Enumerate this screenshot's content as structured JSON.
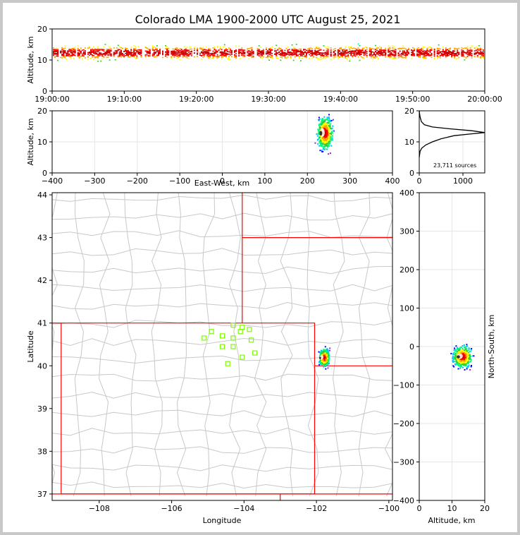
{
  "title": "Colorado LMA 1900-2000 UTC August 25, 2021",
  "colors": {
    "border": "#ff0000",
    "counties": "#c8c8c8",
    "stations": "#7cfc00",
    "hist": "#000000"
  },
  "chart_data": [
    {
      "type": "scatter",
      "id": "altitude-time",
      "ylabel": "Altitude, km",
      "ylim": [
        0,
        20
      ],
      "yticks": [
        "0",
        "10",
        "20"
      ],
      "xticks": [
        "19:00:00",
        "19:10:00",
        "19:20:00",
        "19:30:00",
        "19:40:00",
        "19:50:00",
        "20:00:00"
      ],
      "xlim_minutes": [
        0,
        60
      ]
    },
    {
      "type": "scatter",
      "id": "altitude-eastwest",
      "xlabel": "East-West, km",
      "ylabel": "Altitude, km",
      "xlim": [
        -400,
        400
      ],
      "ylim": [
        0,
        20
      ],
      "xticks": [
        "−400",
        "−300",
        "−200",
        "−100",
        "0",
        "100",
        "200",
        "300",
        "400"
      ],
      "yticks": [
        "0",
        "10",
        "20"
      ],
      "cluster": {
        "x": 240,
        "y": 13
      }
    },
    {
      "type": "line",
      "id": "altitude-histogram",
      "annotation": "23,711 sources",
      "xlim": [
        0,
        1500
      ],
      "ylim": [
        0,
        20
      ],
      "xticks": [
        "0",
        "1000"
      ],
      "yticks": [
        "0",
        "10",
        "20"
      ],
      "profile": [
        [
          0,
          5
        ],
        [
          20,
          7
        ],
        [
          60,
          8
        ],
        [
          150,
          9
        ],
        [
          300,
          10
        ],
        [
          500,
          11
        ],
        [
          800,
          12
        ],
        [
          1200,
          12.6
        ],
        [
          1500,
          13
        ],
        [
          1200,
          13.6
        ],
        [
          700,
          14.2
        ],
        [
          300,
          14.8
        ],
        [
          120,
          15.5
        ],
        [
          50,
          16.5
        ],
        [
          20,
          18
        ],
        [
          8,
          19
        ],
        [
          0,
          20
        ]
      ]
    },
    {
      "type": "scatter",
      "id": "plan-view",
      "xlabel": "Longitude",
      "ylabel": "Latitude",
      "xlim": [
        -109.3,
        -99.9
      ],
      "ylim": [
        36.85,
        44.05
      ],
      "xticks": [
        "−108",
        "−106",
        "−104",
        "−102",
        "−100"
      ],
      "yticks": [
        "37",
        "38",
        "39",
        "40",
        "41",
        "42",
        "43",
        "44"
      ],
      "cluster": {
        "lon": -101.8,
        "lat": 40.2
      },
      "stations": [
        [
          -104.9,
          40.8
        ],
        [
          -104.6,
          40.7
        ],
        [
          -104.3,
          40.95
        ],
        [
          -104.05,
          40.9
        ],
        [
          -103.85,
          40.85
        ],
        [
          -104.1,
          40.8
        ],
        [
          -105.1,
          40.65
        ],
        [
          -104.3,
          40.65
        ],
        [
          -104.6,
          40.45
        ],
        [
          -104.3,
          40.45
        ],
        [
          -103.8,
          40.6
        ],
        [
          -103.7,
          40.3
        ],
        [
          -104.05,
          40.2
        ],
        [
          -104.45,
          40.05
        ]
      ]
    },
    {
      "type": "scatter",
      "id": "northsouth-altitude",
      "xlabel": "Altitude, km",
      "ylabel": "North-South, km",
      "xlim": [
        0,
        20
      ],
      "ylim": [
        -400,
        400
      ],
      "xticks": [
        "0",
        "10",
        "20"
      ],
      "yticks": [
        "−400",
        "−300",
        "−200",
        "−100",
        "0",
        "100",
        "200",
        "300",
        "400"
      ],
      "cluster": {
        "x": 13,
        "y": -25
      }
    }
  ]
}
